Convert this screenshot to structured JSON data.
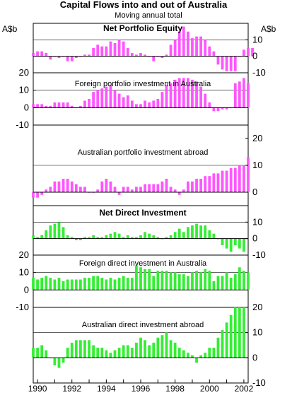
{
  "title": "Capital Flows into and out of Australia",
  "subtitle": "Moving annual total",
  "unit_left": "A$b",
  "unit_right": "A$b",
  "colors": {
    "portfolio": "#ff55ff",
    "direct": "#33ee33"
  },
  "chart_data": {
    "type": "bar",
    "x_start": 1989.75,
    "x_step": 0.25,
    "x_ticks": [
      "1990",
      "1992",
      "1994",
      "1996",
      "1998",
      "2000",
      "2002"
    ],
    "x_tick_values": [
      1990,
      1992,
      1994,
      1996,
      1998,
      2000,
      2002
    ],
    "panels": [
      {
        "title": "Net Portfolio Equity",
        "color": "portfolio",
        "axis_side": "right",
        "ylim": [
          -10,
          20
        ],
        "y_ticks": [
          "-10",
          "0",
          "10"
        ],
        "y_tick_values": [
          -10,
          0,
          10
        ],
        "values": [
          2,
          3,
          3,
          2,
          -2,
          0,
          -1,
          0,
          -3,
          -3,
          -1,
          0,
          1,
          1,
          5,
          7,
          6,
          6,
          9,
          8,
          10,
          9,
          5,
          2,
          1,
          2,
          1,
          0,
          -3,
          0,
          -1,
          1,
          7,
          10,
          15,
          18,
          15,
          11,
          12,
          12,
          10,
          6,
          3,
          -5,
          -8,
          -9,
          -9,
          -9,
          0,
          4,
          5,
          5
        ],
        "labeled_ticks": [
          -10,
          0,
          10
        ],
        "grid": [
          10,
          -10
        ]
      },
      {
        "title": "Foreign portfolio investment in Australia",
        "color": "portfolio",
        "axis_side": "left",
        "ylim": [
          -10,
          20
        ],
        "y_ticks": [
          "-10",
          "0",
          "10",
          "20"
        ],
        "y_tick_values": [
          -10,
          0,
          10,
          20
        ],
        "values": [
          2,
          2,
          2,
          1,
          1,
          3,
          3,
          3,
          3,
          1,
          0,
          1,
          4,
          5,
          9,
          10,
          11,
          12,
          13,
          10,
          8,
          6,
          7,
          4,
          2,
          2,
          4,
          3,
          4,
          5,
          9,
          13,
          14,
          16,
          17,
          17,
          17,
          16,
          15,
          12,
          8,
          3,
          -2,
          -2,
          -1,
          -1,
          0,
          14,
          15,
          17,
          14
        ],
        "grid": [
          10
        ]
      },
      {
        "title": "Australian portfolio investment abroad",
        "color": "portfolio",
        "axis_side": "right",
        "ylim": [
          -5,
          25
        ],
        "y_ticks": [
          "0",
          "10",
          "20"
        ],
        "y_tick_values": [
          0,
          10,
          20
        ],
        "values": [
          -2,
          -2,
          -1,
          1,
          2,
          4,
          4,
          5,
          5,
          4,
          3,
          2,
          2,
          0,
          0,
          1,
          4,
          5,
          4,
          2,
          -1,
          2,
          2,
          1,
          2,
          2,
          3,
          3,
          3,
          3,
          4,
          5,
          2,
          1,
          -1,
          1,
          4,
          4,
          5,
          5,
          6,
          6,
          7,
          7,
          8,
          8,
          9,
          9,
          10,
          10,
          13
        ],
        "grid": [
          10
        ]
      },
      {
        "title": "Net Direct Investment",
        "color": "direct",
        "axis_side": "right",
        "ylim": [
          -10,
          20
        ],
        "y_ticks": [
          "-10",
          "0",
          "10"
        ],
        "y_tick_values": [
          -10,
          0,
          10
        ],
        "values": [
          2,
          1,
          2,
          5,
          8,
          9,
          10,
          7,
          2,
          1,
          -1,
          -1,
          1,
          1,
          2,
          1,
          1,
          2,
          3,
          4,
          3,
          1,
          2,
          1,
          1,
          2,
          4,
          3,
          2,
          1,
          0,
          1,
          2,
          4,
          6,
          4,
          7,
          8,
          9,
          8,
          8,
          5,
          3,
          0,
          -4,
          -6,
          -8,
          -4,
          -6,
          -8
        ],
        "grid": [
          10,
          -10
        ]
      },
      {
        "title": "Foreign direct investment in Australia",
        "color": "direct",
        "axis_side": "left",
        "ylim": [
          -10,
          20
        ],
        "y_ticks": [
          "-10",
          "0",
          "10",
          "20"
        ],
        "y_tick_values": [
          -10,
          0,
          10,
          20
        ],
        "values": [
          7,
          6,
          7,
          8,
          7,
          6,
          7,
          5,
          6,
          6,
          6,
          6,
          7,
          7,
          8,
          8,
          7,
          6,
          7,
          6,
          7,
          8,
          7,
          7,
          14,
          13,
          12,
          12,
          8,
          11,
          11,
          11,
          10,
          10,
          9,
          9,
          8,
          10,
          11,
          10,
          12,
          11,
          5,
          8,
          8,
          10,
          7,
          9,
          13,
          11,
          10
        ],
        "grid": [
          10
        ]
      },
      {
        "title": "Australian direct investment abroad",
        "color": "direct",
        "axis_side": "right",
        "ylim": [
          -10,
          20
        ],
        "y_ticks": [
          "-10",
          "0",
          "10",
          "20"
        ],
        "y_tick_values": [
          -10,
          0,
          10,
          20
        ],
        "values": [
          4,
          4,
          5,
          3,
          0,
          -3,
          -4,
          -2,
          4,
          6,
          7,
          7,
          7,
          7,
          5,
          4,
          4,
          3,
          2,
          3,
          4,
          5,
          5,
          4,
          6,
          8,
          7,
          5,
          6,
          8,
          9,
          10,
          7,
          6,
          4,
          3,
          2,
          1,
          -2,
          1,
          2,
          4,
          4,
          8,
          11,
          14,
          17,
          20,
          20,
          20
        ],
        "grid": [
          10
        ]
      }
    ]
  }
}
